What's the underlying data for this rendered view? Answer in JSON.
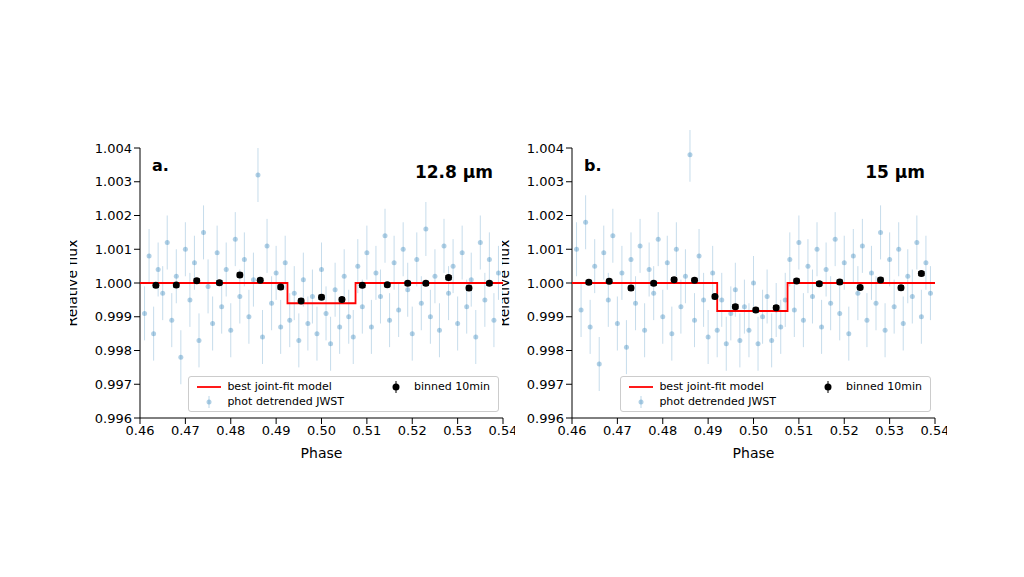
{
  "chart_data": [
    {
      "type": "scatter",
      "panel_label": "a.",
      "annotation": "12.8 μm",
      "x_label": "Phase",
      "y_label": "Relative flux",
      "xlim": [
        0.46,
        0.54
      ],
      "xticks": [
        0.46,
        0.47,
        0.48,
        0.49,
        {
          "value": 0.5,
          "label": "0.50"
        },
        0.51,
        0.52,
        0.53,
        0.54
      ],
      "ylim": [
        0.996,
        1.004
      ],
      "yticks": [
        0.996,
        0.997,
        0.998,
        0.999,
        {
          "value": 1.0,
          "label": "1.000"
        },
        1.001,
        1.002,
        1.003,
        1.004
      ],
      "grid": false,
      "legend": "lower right",
      "series": [
        {
          "name": "phot detrended JWST",
          "type": "scatter",
          "marker": "o",
          "color": "#1f77b4",
          "error": 0.0008,
          "x": [
            0.461,
            0.462,
            0.463,
            0.464,
            0.465,
            0.466,
            0.467,
            0.468,
            0.469,
            0.47,
            0.471,
            0.472,
            0.473,
            0.474,
            0.475,
            0.476,
            0.477,
            0.478,
            0.479,
            0.48,
            0.481,
            0.482,
            0.483,
            0.484,
            0.485,
            0.486,
            0.487,
            0.488,
            0.489,
            0.49,
            0.491,
            0.492,
            0.493,
            0.494,
            0.495,
            0.496,
            0.497,
            0.498,
            0.499,
            0.5,
            0.501,
            0.502,
            0.503,
            0.504,
            0.505,
            0.506,
            0.507,
            0.508,
            0.509,
            0.51,
            0.511,
            0.512,
            0.513,
            0.514,
            0.515,
            0.516,
            0.517,
            0.518,
            0.519,
            0.52,
            0.521,
            0.522,
            0.523,
            0.524,
            0.525,
            0.526,
            0.527,
            0.528,
            0.529,
            0.53,
            0.531,
            0.532,
            0.533,
            0.534,
            0.535,
            0.536,
            0.537,
            0.538,
            0.539
          ],
          "values": [
            0.9991,
            1.0008,
            0.9985,
            1.0004,
            0.9997,
            1.0012,
            0.9989,
            1.0002,
            0.9978,
            1.001,
            0.9995,
            1.0006,
            0.9983,
            1.0015,
            0.9999,
            0.9988,
            1.0009,
            0.9993,
            1.0004,
            0.9986,
            1.0013,
            0.9996,
            1.0007,
            0.999,
            1.0001,
            1.0032,
            0.9984,
            1.0011,
            0.9994,
            1.0003,
            0.9987,
            1.0006,
            0.9989,
            0.9997,
            0.9983,
            1.0001,
            0.9988,
            0.9996,
            0.9985,
            1.0004,
            0.9991,
            0.9982,
            0.9998,
            0.9987,
            1.0002,
            0.999,
            0.9984,
            1.0005,
            0.9993,
            1.0009,
            0.9987,
            1.0003,
            0.9996,
            1.0014,
            0.9989,
            1.0006,
            0.9992,
            1.001,
            0.9998,
            0.9985,
            1.0007,
            0.9994,
            1.0016,
            0.999,
            1.0002,
            0.9986,
            1.0011,
            0.9997,
            1.0005,
            0.9988,
            1.0009,
            0.9993,
            1.0001,
            0.9984,
            1.0012,
            0.9995,
            1.0007,
            0.9989,
            1.0003
          ]
        },
        {
          "name": "best joint-fit model",
          "type": "line",
          "color": "#ff0000",
          "x": [
            0.46,
            0.4925,
            0.4925,
            0.5075,
            0.5075,
            0.54
          ],
          "values": [
            1.0,
            1.0,
            0.9994,
            0.9994,
            1.0,
            1.0
          ]
        },
        {
          "name": "binned 10min",
          "type": "scatter",
          "marker": "o",
          "color": "#000000",
          "error": 6e-05,
          "x": [
            0.4635,
            0.468,
            0.4725,
            0.4775,
            0.482,
            0.4865,
            0.491,
            0.4955,
            0.5,
            0.5045,
            0.509,
            0.5145,
            0.519,
            0.523,
            0.528,
            0.5325,
            0.537
          ],
          "values": [
            0.99993,
            0.99994,
            1.00007,
            1.00001,
            1.00024,
            1.00008,
            0.99988,
            0.99947,
            0.99958,
            0.99951,
            0.99993,
            0.99995,
            0.99999,
            0.99999,
            1.00016,
            0.99985,
            0.99999
          ]
        }
      ]
    },
    {
      "type": "scatter",
      "panel_label": "b.",
      "annotation": "15 μm",
      "x_label": "Phase",
      "y_label": "Relative flux",
      "xlim": [
        0.46,
        0.54
      ],
      "xticks": [
        0.46,
        0.47,
        0.48,
        0.49,
        {
          "value": 0.5,
          "label": "0.50"
        },
        0.51,
        0.52,
        0.53,
        0.54
      ],
      "ylim": [
        0.996,
        1.004
      ],
      "yticks": [
        0.996,
        0.997,
        0.998,
        0.999,
        {
          "value": 1.0,
          "label": "1.000"
        },
        1.001,
        1.002,
        1.003,
        1.004
      ],
      "grid": false,
      "legend": "lower right",
      "series": [
        {
          "name": "phot detrended JWST",
          "type": "scatter",
          "marker": "o",
          "color": "#1f77b4",
          "error": 0.0008,
          "x": [
            0.461,
            0.462,
            0.463,
            0.464,
            0.465,
            0.466,
            0.467,
            0.468,
            0.469,
            0.47,
            0.471,
            0.472,
            0.473,
            0.474,
            0.475,
            0.476,
            0.477,
            0.478,
            0.479,
            0.48,
            0.481,
            0.482,
            0.483,
            0.484,
            0.485,
            0.486,
            0.487,
            0.488,
            0.489,
            0.49,
            0.491,
            0.492,
            0.493,
            0.494,
            0.495,
            0.496,
            0.497,
            0.498,
            0.499,
            0.5,
            0.501,
            0.502,
            0.503,
            0.504,
            0.505,
            0.506,
            0.507,
            0.508,
            0.509,
            0.51,
            0.511,
            0.512,
            0.513,
            0.514,
            0.515,
            0.516,
            0.517,
            0.518,
            0.519,
            0.52,
            0.521,
            0.522,
            0.523,
            0.524,
            0.525,
            0.526,
            0.527,
            0.528,
            0.529,
            0.53,
            0.531,
            0.532,
            0.533,
            0.534,
            0.535,
            0.536,
            0.537,
            0.538,
            0.539
          ],
          "values": [
            1.001,
            0.9992,
            1.0018,
            0.9987,
            1.0005,
            0.9976,
            1.0009,
            0.9995,
            1.0014,
            0.9988,
            1.0003,
            0.9981,
            1.0007,
            0.9994,
            1.0011,
            0.9986,
            1.0004,
            0.9997,
            1.0013,
            0.999,
            1.0006,
            0.9985,
            1.001,
            0.9993,
            1.0002,
            1.0038,
            0.9989,
            1.0008,
            0.9995,
            0.9984,
            1.0003,
            0.9986,
            0.9995,
            0.9982,
            0.9991,
            0.9998,
            0.9983,
            0.9993,
            0.9986,
            1.0,
            0.9982,
            0.999,
            0.9996,
            0.9983,
            0.9992,
            0.9987,
            0.9995,
            1.0007,
            0.9992,
            1.0012,
            0.9989,
            1.0005,
            0.9996,
            1.001,
            0.9987,
            1.0004,
            0.9994,
            1.0013,
            0.9991,
            1.0006,
            0.9985,
            1.0008,
            0.9997,
            1.0011,
            0.9989,
            1.0003,
            0.9994,
            1.0015,
            0.9986,
            1.0007,
            0.9993,
            1.001,
            0.9988,
            1.0002,
            0.9996,
            1.0012,
            0.999,
            1.0006,
            0.9997
          ]
        },
        {
          "name": "best joint-fit model",
          "type": "line",
          "color": "#ff0000",
          "x": [
            0.46,
            0.492,
            0.492,
            0.5075,
            0.5075,
            0.54
          ],
          "values": [
            1.0,
            1.0,
            0.99917,
            0.99917,
            1.0,
            1.0
          ]
        },
        {
          "name": "binned 10min",
          "type": "scatter",
          "marker": "o",
          "color": "#000000",
          "error": 6e-05,
          "x": [
            0.4637,
            0.4682,
            0.473,
            0.478,
            0.4825,
            0.487,
            0.4915,
            0.496,
            0.5005,
            0.505,
            0.5095,
            0.5145,
            0.519,
            0.5235,
            0.528,
            0.5325,
            0.537
          ],
          "values": [
            1.00002,
            1.00005,
            0.99985,
            0.99999,
            1.0001,
            1.00008,
            0.9996,
            0.9993,
            0.9992,
            0.99927,
            1.00006,
            0.99998,
            1.00003,
            0.99987,
            1.00009,
            0.99986,
            1.00028
          ]
        }
      ]
    }
  ]
}
